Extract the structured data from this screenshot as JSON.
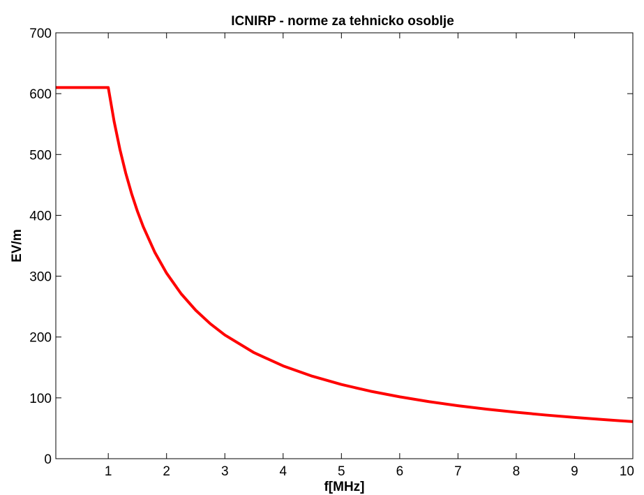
{
  "chart_data": {
    "type": "line",
    "title": "ICNIRP - norme za tehnicko osoblje",
    "xlabel": "f[MHz]",
    "ylabel": "EV/m",
    "xlim": [
      0.1,
      10
    ],
    "ylim": [
      0,
      700
    ],
    "xticks": [
      1,
      2,
      3,
      4,
      5,
      6,
      7,
      8,
      9,
      10
    ],
    "yticks": [
      0,
      100,
      200,
      300,
      400,
      500,
      600,
      700
    ],
    "xtick_labels": [
      "1",
      "2",
      "3",
      "4",
      "5",
      "6",
      "7",
      "8",
      "9",
      "10"
    ],
    "ytick_labels": [
      "0",
      "100",
      "200",
      "300",
      "400",
      "500",
      "600",
      "700"
    ],
    "grid": false,
    "series": [
      {
        "color": "#ff0000",
        "x": [
          0.1,
          1,
          1.1,
          1.2,
          1.3,
          1.4,
          1.5,
          1.6,
          1.8,
          2,
          2.25,
          2.5,
          2.75,
          3,
          3.5,
          4,
          4.5,
          5,
          5.5,
          6,
          6.5,
          7,
          7.5,
          8,
          8.5,
          9,
          9.5,
          10
        ],
        "y": [
          610,
          610,
          554.5,
          508.3,
          469.2,
          435.7,
          406.7,
          381.3,
          338.9,
          305,
          271.1,
          244,
          221.8,
          203.3,
          174.3,
          152.5,
          135.6,
          122,
          110.9,
          101.7,
          93.8,
          87.1,
          81.3,
          76.3,
          71.8,
          67.8,
          64.2,
          61
        ]
      }
    ]
  }
}
